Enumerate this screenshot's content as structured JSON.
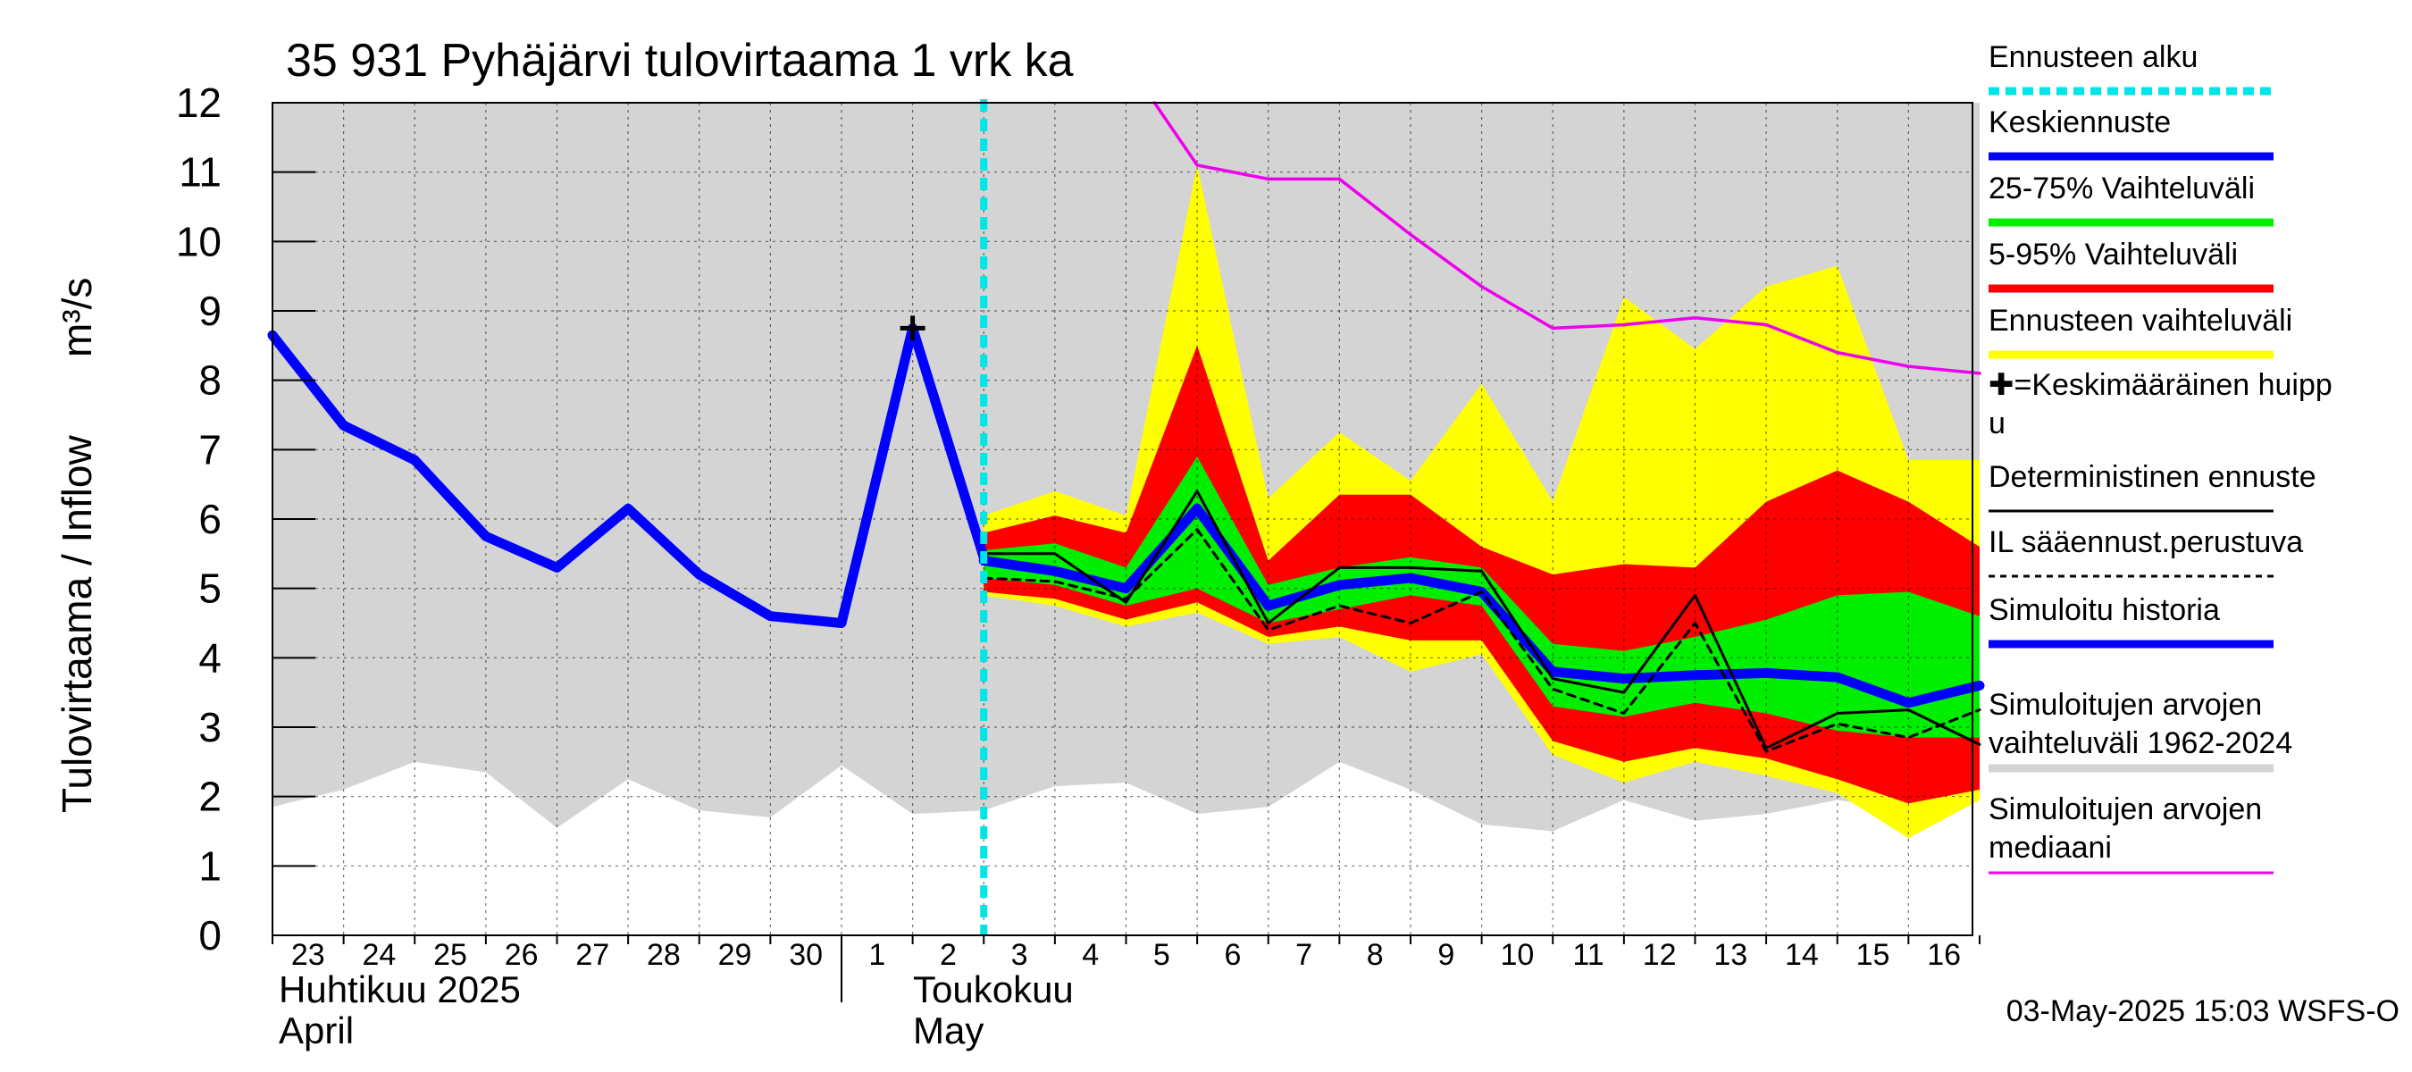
{
  "chart_data": {
    "type": "area",
    "title": "35 931 Pyhäjärvi tulovirtaama 1 vrk ka",
    "ylabel_fi": "Tulovirtaama / Inflow",
    "ylabel_unit": "m³/s",
    "ylim": [
      0,
      12
    ],
    "yticks": [
      "0",
      "1",
      "2",
      "3",
      "4",
      "5",
      "6",
      "7",
      "8",
      "9",
      "10",
      "11",
      "12"
    ],
    "x_day_labels": [
      "23",
      "24",
      "25",
      "26",
      "27",
      "28",
      "29",
      "30",
      "1",
      "2",
      "3",
      "4",
      "5",
      "6",
      "7",
      "8",
      "9",
      "10",
      "11",
      "12",
      "13",
      "14",
      "15",
      "16"
    ],
    "month1_fi": "Huhtikuu  2025",
    "month1_en": "April",
    "month2_fi": "Toukokuu",
    "month2_en": "May",
    "timestamp": "03-May-2025 15:03 WSFS-O",
    "forecast_start_index": 10,
    "grid": true,
    "legend_position": "right",
    "legend": [
      {
        "label": "Ennusteen alku",
        "color": "#00e5e5",
        "style": "dashed-thick"
      },
      {
        "label": "Keskiennuste",
        "color": "#0000ff",
        "style": "thick"
      },
      {
        "label": "25-75% Vaihteluväli",
        "color": "#00ee00",
        "style": "thick"
      },
      {
        "label": "5-95% Vaihteluväli",
        "color": "#ff0000",
        "style": "thick"
      },
      {
        "label": "Ennusteen vaihteluväli",
        "color": "#ffff00",
        "style": "thick"
      },
      {
        "label": "✚=Keskimääräinen huipp",
        "label2": "u",
        "color": "#000000",
        "style": "none"
      },
      {
        "label": "Deterministinen ennuste",
        "color": "#000000",
        "style": "thin"
      },
      {
        "label": "IL sääennust.perustuva",
        "color": "#000000",
        "style": "dotted"
      },
      {
        "label": "Simuloitu historia",
        "color": "#0000ff",
        "style": "thick"
      },
      {
        "label": "Simuloitujen arvojen",
        "label2": "vaihteluväli 1962-2024",
        "color": "#d4d4d4",
        "style": "thick"
      },
      {
        "label": "Simuloitujen arvojen",
        "label2": "mediaani",
        "color": "#ee00ee",
        "style": "thin"
      }
    ],
    "series": {
      "sim_range_lower": [
        1.85,
        2.1,
        2.5,
        2.35,
        1.55,
        2.25,
        1.8,
        1.7,
        2.45,
        1.75,
        1.8,
        2.15,
        2.2,
        1.75,
        1.85,
        2.5,
        2.1,
        1.6,
        1.5,
        1.95,
        1.65,
        1.75,
        1.95,
        1.8,
        2.05
      ],
      "sim_range_upper": [
        12,
        12,
        12,
        12,
        12,
        12,
        12,
        12,
        12,
        12,
        12,
        12,
        12,
        12,
        12,
        12,
        12,
        12,
        12,
        12,
        12,
        12,
        12,
        12,
        12
      ],
      "forecast_range": {
        "x": [
          10,
          11,
          12,
          13,
          14,
          15,
          16,
          17,
          18,
          19,
          20,
          21,
          22,
          23,
          24
        ],
        "lower": [
          4.9,
          4.75,
          4.45,
          4.65,
          4.2,
          4.3,
          3.8,
          4.05,
          2.6,
          2.2,
          2.5,
          2.3,
          2.05,
          1.4,
          1.95
        ],
        "upper": [
          6.05,
          6.4,
          6.05,
          11.1,
          6.3,
          7.25,
          6.55,
          7.95,
          6.25,
          9.2,
          8.45,
          9.35,
          9.65,
          6.85,
          6.85
        ]
      },
      "range_5_95": {
        "x": [
          10,
          11,
          12,
          13,
          14,
          15,
          16,
          17,
          18,
          19,
          20,
          21,
          22,
          23,
          24
        ],
        "lower": [
          4.95,
          4.85,
          4.55,
          4.8,
          4.3,
          4.45,
          4.25,
          4.25,
          2.8,
          2.5,
          2.7,
          2.55,
          2.25,
          1.9,
          2.1
        ],
        "upper": [
          5.8,
          6.05,
          5.8,
          8.5,
          5.4,
          6.35,
          6.35,
          5.6,
          5.2,
          5.35,
          5.3,
          6.25,
          6.7,
          6.25,
          5.6
        ]
      },
      "range_25_75": {
        "x": [
          10,
          11,
          12,
          13,
          14,
          15,
          16,
          17,
          18,
          19,
          20,
          21,
          22,
          23,
          24
        ],
        "lower": [
          5.15,
          5.05,
          4.75,
          5.0,
          4.5,
          4.7,
          4.9,
          4.75,
          3.3,
          3.15,
          3.35,
          3.2,
          2.95,
          2.85,
          2.85
        ],
        "upper": [
          5.55,
          5.65,
          5.3,
          6.9,
          5.05,
          5.3,
          5.45,
          5.3,
          4.2,
          4.1,
          4.3,
          4.55,
          4.9,
          4.95,
          4.6
        ]
      },
      "deterministic": {
        "x": [
          10,
          11,
          12,
          13,
          14,
          15,
          16,
          17,
          18,
          19,
          20,
          21,
          22,
          23,
          24
        ],
        "values": [
          5.5,
          5.5,
          4.8,
          6.4,
          4.5,
          5.3,
          5.3,
          5.25,
          3.7,
          3.5,
          4.9,
          2.7,
          3.2,
          3.25,
          2.75
        ]
      },
      "il_weather": {
        "x": [
          10,
          11,
          12,
          13,
          14,
          15,
          16,
          17,
          18,
          19,
          20,
          21,
          22,
          23,
          24
        ],
        "values": [
          5.15,
          5.1,
          4.85,
          5.85,
          4.4,
          4.75,
          4.5,
          4.95,
          3.55,
          3.2,
          4.5,
          2.65,
          3.05,
          2.85,
          3.25
        ]
      },
      "mean_forecast": {
        "x": [
          10,
          11,
          12,
          13,
          14,
          15,
          16,
          17,
          18,
          19,
          20,
          21,
          22,
          23,
          24
        ],
        "values": [
          5.4,
          5.25,
          5.0,
          6.15,
          4.75,
          5.05,
          5.15,
          4.95,
          3.8,
          3.7,
          3.75,
          3.78,
          3.72,
          3.35,
          3.6
        ]
      },
      "simulated_history": {
        "x": [
          0,
          1,
          2,
          3,
          4,
          5,
          6,
          7,
          8,
          9,
          10
        ],
        "values": [
          8.65,
          7.35,
          6.85,
          5.75,
          5.3,
          6.15,
          5.2,
          4.6,
          4.5,
          8.75,
          5.45
        ]
      },
      "median": {
        "x": [
          12.4,
          13,
          14,
          15,
          16,
          17,
          18,
          19,
          20,
          21,
          22,
          23,
          24
        ],
        "values": [
          12.0,
          11.1,
          10.9,
          10.9,
          10.1,
          9.35,
          8.75,
          8.8,
          8.9,
          8.8,
          8.4,
          8.2,
          8.1
        ]
      },
      "mean_peak": {
        "x": 9,
        "y": 8.75
      }
    }
  }
}
